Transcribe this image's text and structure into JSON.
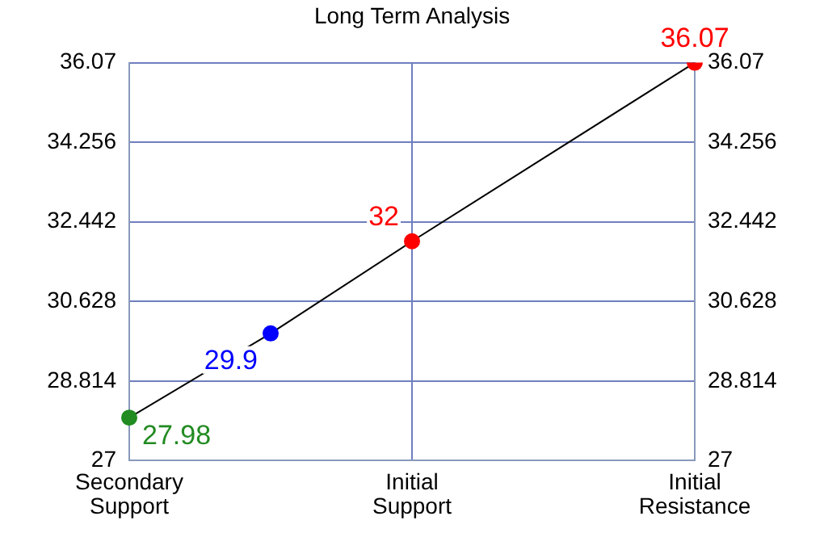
{
  "chart_data": {
    "type": "line",
    "title": "Long Term Analysis",
    "categories": [
      "Secondary Support",
      null,
      "Initial Support",
      null,
      "Initial Resistance"
    ],
    "series": [
      {
        "color": "#000000",
        "colors": [
          "#228b22",
          "#0000ff",
          "#ff0000",
          "#ff0000",
          "#ff0000"
        ],
        "values": [
          27.98,
          29.9,
          32,
          null,
          36.07
        ]
      }
    ],
    "ylim": [
      27,
      36.07
    ],
    "yticks": [
      27,
      28.814,
      30.628,
      32.442,
      34.256,
      36.07
    ],
    "y2lim": [
      27,
      36.07
    ],
    "y2ticks": [
      27,
      28.814,
      30.628,
      32.442,
      34.256,
      36.07
    ],
    "grid": true,
    "marker": "circle",
    "line_style": "solid",
    "data_labels": true
  }
}
